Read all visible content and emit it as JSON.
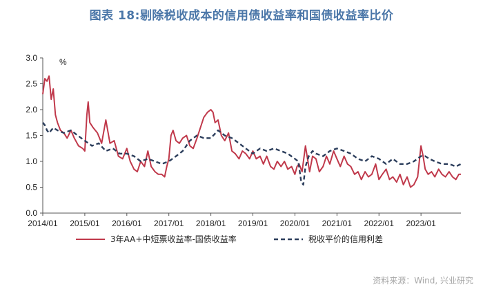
{
  "chart_data": {
    "type": "line",
    "title": "图表 18:剔除税收成本的信用债收益率和国债收益率比价",
    "unit_label": "%",
    "ylim": [
      0.0,
      3.0
    ],
    "y_ticks": [
      "0.0",
      "0.5",
      "1.0",
      "1.5",
      "2.0",
      "2.5",
      "3.0"
    ],
    "x_ticks": [
      "2014/01",
      "2015/01",
      "2016/01",
      "2017/01",
      "2018/01",
      "2019/01",
      "2020/01",
      "2021/01",
      "2022/01",
      "2023/01"
    ],
    "x_range": [
      2014.0,
      2023.95
    ],
    "source": "资料来源：Wind, 兴业研究",
    "series": [
      {
        "name": "3年AA+中短票收益率-国债收益率",
        "color": "#c0394b",
        "style": "solid",
        "x": [
          2014.0,
          2014.05,
          2014.1,
          2014.15,
          2014.2,
          2014.25,
          2014.3,
          2014.35,
          2014.42,
          2014.5,
          2014.58,
          2014.67,
          2014.75,
          2014.85,
          2014.95,
          2015.0,
          2015.05,
          2015.08,
          2015.12,
          2015.2,
          2015.3,
          2015.4,
          2015.5,
          2015.6,
          2015.7,
          2015.8,
          2015.9,
          2016.0,
          2016.08,
          2016.17,
          2016.25,
          2016.33,
          2016.42,
          2016.5,
          2016.58,
          2016.67,
          2016.75,
          2016.83,
          2016.9,
          2016.95,
          2017.0,
          2017.05,
          2017.1,
          2017.17,
          2017.25,
          2017.33,
          2017.42,
          2017.5,
          2017.58,
          2017.67,
          2017.75,
          2017.83,
          2017.92,
          2018.0,
          2018.05,
          2018.1,
          2018.17,
          2018.25,
          2018.33,
          2018.42,
          2018.5,
          2018.58,
          2018.67,
          2018.75,
          2018.83,
          2018.92,
          2019.0,
          2019.08,
          2019.17,
          2019.25,
          2019.33,
          2019.42,
          2019.5,
          2019.58,
          2019.67,
          2019.75,
          2019.83,
          2019.92,
          2020.0,
          2020.05,
          2020.1,
          2020.17,
          2020.25,
          2020.3,
          2020.35,
          2020.42,
          2020.5,
          2020.58,
          2020.67,
          2020.75,
          2020.83,
          2020.92,
          2021.0,
          2021.08,
          2021.17,
          2021.25,
          2021.33,
          2021.42,
          2021.5,
          2021.58,
          2021.67,
          2021.75,
          2021.83,
          2021.92,
          2022.0,
          2022.08,
          2022.17,
          2022.25,
          2022.33,
          2022.42,
          2022.5,
          2022.58,
          2022.67,
          2022.75,
          2022.83,
          2022.92,
          2023.0,
          2023.05,
          2023.1,
          2023.17,
          2023.25,
          2023.33,
          2023.42,
          2023.5,
          2023.58,
          2023.67,
          2023.75,
          2023.83,
          2023.9,
          2023.95
        ],
        "values": [
          2.3,
          2.6,
          2.55,
          2.65,
          2.2,
          2.4,
          1.9,
          1.75,
          1.6,
          1.55,
          1.45,
          1.6,
          1.45,
          1.3,
          1.25,
          1.2,
          1.9,
          2.15,
          1.75,
          1.65,
          1.55,
          1.35,
          1.8,
          1.35,
          1.4,
          1.1,
          1.05,
          1.25,
          1.0,
          0.85,
          0.8,
          1.0,
          0.9,
          1.2,
          0.9,
          0.8,
          0.75,
          0.75,
          0.7,
          0.9,
          1.05,
          1.5,
          1.6,
          1.4,
          1.35,
          1.45,
          1.5,
          1.3,
          1.25,
          1.45,
          1.65,
          1.85,
          1.95,
          2.0,
          1.95,
          1.75,
          1.8,
          1.5,
          1.4,
          1.55,
          1.2,
          1.15,
          1.05,
          1.2,
          1.15,
          1.05,
          1.2,
          1.05,
          1.1,
          0.95,
          1.1,
          0.9,
          0.85,
          1.0,
          0.9,
          1.0,
          0.85,
          0.9,
          0.75,
          0.9,
          0.95,
          0.8,
          1.3,
          1.05,
          0.8,
          1.1,
          1.05,
          0.8,
          0.9,
          1.1,
          0.95,
          1.2,
          1.05,
          0.9,
          1.1,
          0.95,
          0.9,
          0.75,
          0.8,
          0.65,
          0.8,
          0.7,
          0.75,
          0.95,
          0.65,
          0.75,
          0.85,
          0.65,
          0.7,
          0.6,
          0.75,
          0.55,
          0.7,
          0.5,
          0.55,
          0.7,
          1.3,
          1.1,
          0.85,
          0.75,
          0.8,
          0.7,
          0.85,
          0.75,
          0.7,
          0.8,
          0.7,
          0.65,
          0.75,
          0.75
        ]
      },
      {
        "name": "税收平价的信用利差",
        "color": "#2c3e5c",
        "style": "dashed",
        "x": [
          2014.0,
          2014.05,
          2014.1,
          2014.15,
          2014.25,
          2014.35,
          2014.5,
          2014.67,
          2014.83,
          2015.0,
          2015.17,
          2015.33,
          2015.5,
          2015.67,
          2015.83,
          2016.0,
          2016.17,
          2016.33,
          2016.5,
          2016.67,
          2016.83,
          2017.0,
          2017.17,
          2017.33,
          2017.5,
          2017.67,
          2017.83,
          2018.0,
          2018.17,
          2018.33,
          2018.5,
          2018.67,
          2018.83,
          2019.0,
          2019.17,
          2019.33,
          2019.5,
          2019.67,
          2019.83,
          2020.0,
          2020.08,
          2020.15,
          2020.2,
          2020.25,
          2020.33,
          2020.42,
          2020.5,
          2020.67,
          2020.83,
          2021.0,
          2021.17,
          2021.33,
          2021.5,
          2021.67,
          2021.83,
          2022.0,
          2022.17,
          2022.33,
          2022.5,
          2022.67,
          2022.83,
          2023.0,
          2023.1,
          2023.2,
          2023.33,
          2023.5,
          2023.67,
          2023.83,
          2023.95
        ],
        "values": [
          1.75,
          1.7,
          1.6,
          1.55,
          1.65,
          1.6,
          1.55,
          1.6,
          1.5,
          1.4,
          1.3,
          1.35,
          1.2,
          1.25,
          1.15,
          1.15,
          1.1,
          1.0,
          1.05,
          1.0,
          0.95,
          1.0,
          1.1,
          1.2,
          1.4,
          1.5,
          1.45,
          1.45,
          1.6,
          1.5,
          1.45,
          1.35,
          1.25,
          1.15,
          1.25,
          1.2,
          1.25,
          1.2,
          1.15,
          1.05,
          1.0,
          0.6,
          0.55,
          0.9,
          1.1,
          1.2,
          1.15,
          1.1,
          1.2,
          1.25,
          1.2,
          1.15,
          1.05,
          1.0,
          1.1,
          1.05,
          0.95,
          1.05,
          0.95,
          0.95,
          1.0,
          1.1,
          1.1,
          1.05,
          1.0,
          0.95,
          0.95,
          0.9,
          0.95
        ]
      }
    ]
  }
}
